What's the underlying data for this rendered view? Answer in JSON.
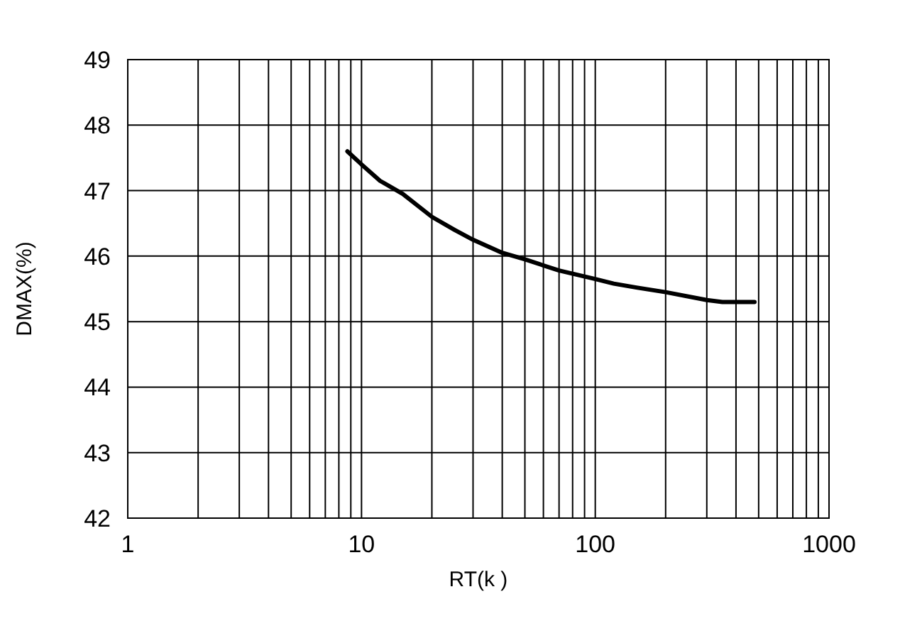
{
  "chart_data": {
    "type": "line",
    "xlabel": "RT(k )",
    "ylabel": "DMAX(%)",
    "log": "x",
    "grid": true,
    "line_style": "solid",
    "marker": "none",
    "xlim": [
      1,
      1000
    ],
    "ylim": [
      42,
      49
    ],
    "xticks": [
      1,
      {
        "value": 2,
        "label": null
      },
      {
        "value": 3,
        "label": null
      },
      {
        "value": 4,
        "label": null
      },
      {
        "value": 5,
        "label": null
      },
      {
        "value": 6,
        "label": null
      },
      {
        "value": 7,
        "label": null
      },
      {
        "value": 8,
        "label": null
      },
      {
        "value": 9,
        "label": null
      },
      10,
      {
        "value": 20,
        "label": null
      },
      {
        "value": 30,
        "label": null
      },
      {
        "value": 40,
        "label": null
      },
      {
        "value": 50,
        "label": null
      },
      {
        "value": 60,
        "label": null
      },
      {
        "value": 70,
        "label": null
      },
      {
        "value": 80,
        "label": null
      },
      {
        "value": 90,
        "label": null
      },
      100,
      {
        "value": 200,
        "label": null
      },
      {
        "value": 300,
        "label": null
      },
      {
        "value": 400,
        "label": null
      },
      {
        "value": 500,
        "label": null
      },
      {
        "value": 600,
        "label": null
      },
      {
        "value": 700,
        "label": null
      },
      {
        "value": 800,
        "label": null
      },
      {
        "value": 900,
        "label": null
      },
      1000
    ],
    "yticks": [
      42,
      43,
      44,
      45,
      46,
      47,
      48,
      49
    ],
    "series": [
      {
        "color": "#000000",
        "x": [
          8.7,
          10,
          12,
          15,
          20,
          25,
          30,
          40,
          50,
          70,
          100,
          120,
          150,
          200,
          300,
          350,
          480
        ],
        "values": [
          47.6,
          47.4,
          47.15,
          46.95,
          46.6,
          46.4,
          46.25,
          46.05,
          45.95,
          45.78,
          45.65,
          45.58,
          45.52,
          45.45,
          45.33,
          45.3,
          45.3
        ]
      }
    ]
  }
}
